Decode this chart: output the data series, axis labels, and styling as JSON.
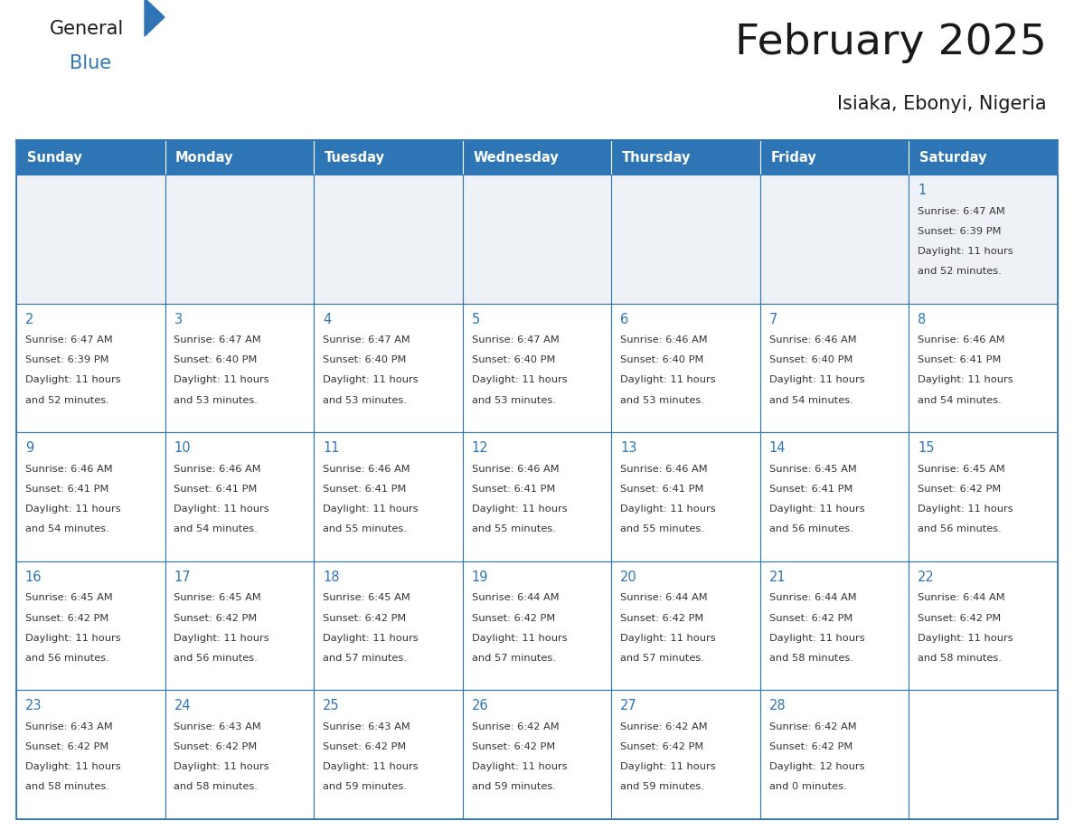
{
  "title": "February 2025",
  "subtitle": "Isiaka, Ebonyi, Nigeria",
  "header_bg_color": "#2E75B6",
  "header_text_color": "#FFFFFF",
  "day_names": [
    "Sunday",
    "Monday",
    "Tuesday",
    "Wednesday",
    "Thursday",
    "Friday",
    "Saturday"
  ],
  "bg_color": "#FFFFFF",
  "cell_border_color": "#2E75B6",
  "title_color": "#1a1a1a",
  "subtitle_color": "#1a1a1a",
  "day_num_color": "#2E75B6",
  "cell_text_color": "#333333",
  "row1_bg_color": "#EEF2F7",
  "calendar": [
    [
      null,
      null,
      null,
      null,
      null,
      null,
      1
    ],
    [
      2,
      3,
      4,
      5,
      6,
      7,
      8
    ],
    [
      9,
      10,
      11,
      12,
      13,
      14,
      15
    ],
    [
      16,
      17,
      18,
      19,
      20,
      21,
      22
    ],
    [
      23,
      24,
      25,
      26,
      27,
      28,
      null
    ]
  ],
  "cell_data": {
    "1": {
      "sunrise": "6:47 AM",
      "sunset": "6:39 PM",
      "daylight_h": "11 hours",
      "daylight_m": "and 52 minutes."
    },
    "2": {
      "sunrise": "6:47 AM",
      "sunset": "6:39 PM",
      "daylight_h": "11 hours",
      "daylight_m": "and 52 minutes."
    },
    "3": {
      "sunrise": "6:47 AM",
      "sunset": "6:40 PM",
      "daylight_h": "11 hours",
      "daylight_m": "and 53 minutes."
    },
    "4": {
      "sunrise": "6:47 AM",
      "sunset": "6:40 PM",
      "daylight_h": "11 hours",
      "daylight_m": "and 53 minutes."
    },
    "5": {
      "sunrise": "6:47 AM",
      "sunset": "6:40 PM",
      "daylight_h": "11 hours",
      "daylight_m": "and 53 minutes."
    },
    "6": {
      "sunrise": "6:46 AM",
      "sunset": "6:40 PM",
      "daylight_h": "11 hours",
      "daylight_m": "and 53 minutes."
    },
    "7": {
      "sunrise": "6:46 AM",
      "sunset": "6:40 PM",
      "daylight_h": "11 hours",
      "daylight_m": "and 54 minutes."
    },
    "8": {
      "sunrise": "6:46 AM",
      "sunset": "6:41 PM",
      "daylight_h": "11 hours",
      "daylight_m": "and 54 minutes."
    },
    "9": {
      "sunrise": "6:46 AM",
      "sunset": "6:41 PM",
      "daylight_h": "11 hours",
      "daylight_m": "and 54 minutes."
    },
    "10": {
      "sunrise": "6:46 AM",
      "sunset": "6:41 PM",
      "daylight_h": "11 hours",
      "daylight_m": "and 54 minutes."
    },
    "11": {
      "sunrise": "6:46 AM",
      "sunset": "6:41 PM",
      "daylight_h": "11 hours",
      "daylight_m": "and 55 minutes."
    },
    "12": {
      "sunrise": "6:46 AM",
      "sunset": "6:41 PM",
      "daylight_h": "11 hours",
      "daylight_m": "and 55 minutes."
    },
    "13": {
      "sunrise": "6:46 AM",
      "sunset": "6:41 PM",
      "daylight_h": "11 hours",
      "daylight_m": "and 55 minutes."
    },
    "14": {
      "sunrise": "6:45 AM",
      "sunset": "6:41 PM",
      "daylight_h": "11 hours",
      "daylight_m": "and 56 minutes."
    },
    "15": {
      "sunrise": "6:45 AM",
      "sunset": "6:42 PM",
      "daylight_h": "11 hours",
      "daylight_m": "and 56 minutes."
    },
    "16": {
      "sunrise": "6:45 AM",
      "sunset": "6:42 PM",
      "daylight_h": "11 hours",
      "daylight_m": "and 56 minutes."
    },
    "17": {
      "sunrise": "6:45 AM",
      "sunset": "6:42 PM",
      "daylight_h": "11 hours",
      "daylight_m": "and 56 minutes."
    },
    "18": {
      "sunrise": "6:45 AM",
      "sunset": "6:42 PM",
      "daylight_h": "11 hours",
      "daylight_m": "and 57 minutes."
    },
    "19": {
      "sunrise": "6:44 AM",
      "sunset": "6:42 PM",
      "daylight_h": "11 hours",
      "daylight_m": "and 57 minutes."
    },
    "20": {
      "sunrise": "6:44 AM",
      "sunset": "6:42 PM",
      "daylight_h": "11 hours",
      "daylight_m": "and 57 minutes."
    },
    "21": {
      "sunrise": "6:44 AM",
      "sunset": "6:42 PM",
      "daylight_h": "11 hours",
      "daylight_m": "and 58 minutes."
    },
    "22": {
      "sunrise": "6:44 AM",
      "sunset": "6:42 PM",
      "daylight_h": "11 hours",
      "daylight_m": "and 58 minutes."
    },
    "23": {
      "sunrise": "6:43 AM",
      "sunset": "6:42 PM",
      "daylight_h": "11 hours",
      "daylight_m": "and 58 minutes."
    },
    "24": {
      "sunrise": "6:43 AM",
      "sunset": "6:42 PM",
      "daylight_h": "11 hours",
      "daylight_m": "and 58 minutes."
    },
    "25": {
      "sunrise": "6:43 AM",
      "sunset": "6:42 PM",
      "daylight_h": "11 hours",
      "daylight_m": "and 59 minutes."
    },
    "26": {
      "sunrise": "6:42 AM",
      "sunset": "6:42 PM",
      "daylight_h": "11 hours",
      "daylight_m": "and 59 minutes."
    },
    "27": {
      "sunrise": "6:42 AM",
      "sunset": "6:42 PM",
      "daylight_h": "11 hours",
      "daylight_m": "and 59 minutes."
    },
    "28": {
      "sunrise": "6:42 AM",
      "sunset": "6:42 PM",
      "daylight_h": "12 hours",
      "daylight_m": "and 0 minutes."
    }
  }
}
